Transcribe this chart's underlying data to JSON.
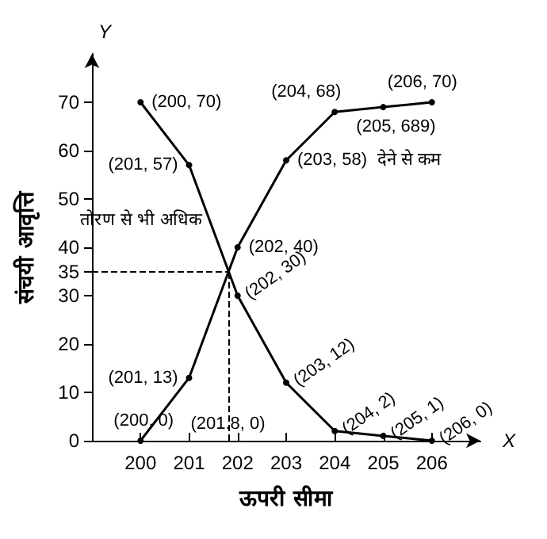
{
  "chart_data": {
    "type": "line",
    "xlabel": "ऊपरी सीमा",
    "ylabel": "संचयी आवृत्ति",
    "x": [
      200,
      201,
      202,
      203,
      204,
      205,
      206
    ],
    "series": [
      {
        "name": "तोरण से भी अधिक",
        "color": "#000000",
        "values": [
          70,
          57,
          30,
          12,
          2,
          1,
          0
        ],
        "value_labels": [
          "(200, 70)",
          "(201, 57)",
          "(202, 30)",
          "(203, 12)",
          "(204, 2)",
          "(205, 1)",
          "(206, 0)"
        ]
      },
      {
        "name": "देने से कम",
        "color": "#000000",
        "values": [
          0,
          13,
          40,
          58,
          68,
          69,
          70
        ],
        "value_labels": [
          "(200, 0)",
          "(201, 13)",
          "(202, 40)",
          "(203, 58)",
          "(204, 68)",
          "(205, 689)",
          "(206, 70)"
        ]
      }
    ],
    "xlim": [
      199,
      207
    ],
    "xticks": [
      200,
      201,
      202,
      203,
      204,
      205,
      206
    ],
    "ylim": [
      0,
      80
    ],
    "yticks": [
      {
        "value": 0,
        "label": "0"
      },
      10,
      20,
      30,
      35,
      40,
      50,
      60,
      70
    ],
    "ref_lines": [
      {
        "axis": "x",
        "value": 201.8,
        "label": "(201.8, 0)",
        "line_style": "dashed",
        "color": "#000000"
      },
      {
        "axis": "y",
        "value": 35,
        "line_style": "dashed",
        "color": "#000000"
      }
    ],
    "annotations": [
      "Y",
      "X"
    ],
    "marker": "circle",
    "line_style": "solid",
    "grid": false,
    "legend": false
  }
}
